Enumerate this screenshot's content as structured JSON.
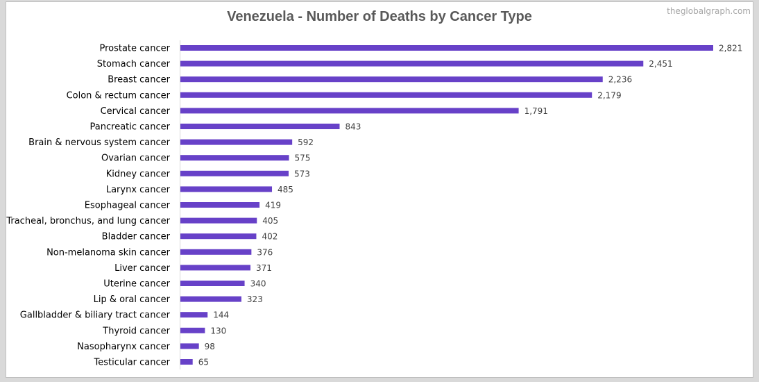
{
  "chart_data": {
    "type": "bar",
    "orientation": "horizontal",
    "title": "Venezuela - Number of Deaths by Cancer Type",
    "watermark": "theglobalgraph.com",
    "bar_color": "#6741c8",
    "categories": [
      "Prostate cancer",
      "Stomach cancer",
      "Breast cancer",
      "Colon & rectum cancer",
      "Cervical cancer",
      "Pancreatic cancer",
      "Brain & nervous system cancer",
      "Ovarian cancer",
      "Kidney cancer",
      "Larynx cancer",
      "Esophageal cancer",
      "Tracheal, bronchus, and lung cancer",
      "Bladder cancer",
      "Non-melanoma skin cancer",
      "Liver cancer",
      "Uterine cancer",
      "Lip & oral cancer",
      "Gallbladder & biliary tract cancer",
      "Thyroid cancer",
      "Nasopharynx cancer",
      "Testicular cancer"
    ],
    "values": [
      2821,
      2451,
      2236,
      2179,
      1791,
      843,
      592,
      575,
      573,
      485,
      419,
      405,
      402,
      376,
      371,
      340,
      323,
      144,
      130,
      98,
      65
    ],
    "value_labels": [
      "2,821",
      "2,451",
      "2,236",
      "2,179",
      "1,791",
      "843",
      "592",
      "575",
      "573",
      "485",
      "419",
      "405",
      "402",
      "376",
      "371",
      "340",
      "323",
      "144",
      "130",
      "98",
      "65"
    ],
    "xlim": [
      0,
      2821
    ],
    "grid": false,
    "legend": "none"
  }
}
